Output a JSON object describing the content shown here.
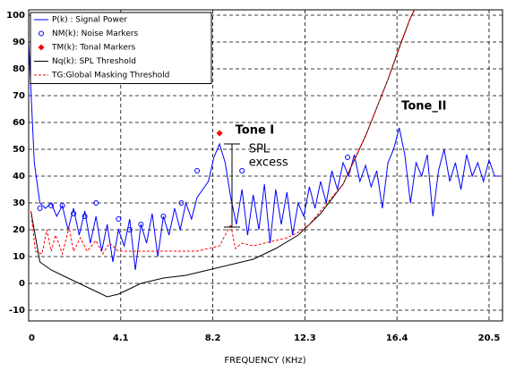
{
  "chart_data": {
    "type": "line",
    "xlabel": "FREQUENCY (KHz)",
    "xlim": [
      0,
      21.1
    ],
    "ylim": [
      -14,
      102
    ],
    "xticks": [
      0,
      4.1,
      8.2,
      12.3,
      16.4,
      20.5
    ],
    "yticks": [
      -10,
      0,
      10,
      20,
      30,
      40,
      50,
      60,
      70,
      80,
      90,
      100
    ],
    "grid": true,
    "legend": "upper left",
    "series": [
      {
        "name": "P(k) : Signal Power",
        "color": "#0000ff",
        "style": "line",
        "x": [
          0,
          0.25,
          0.5,
          0.75,
          1,
          1.25,
          1.5,
          1.75,
          2,
          2.25,
          2.5,
          2.75,
          3,
          3.25,
          3.5,
          3.75,
          4,
          4.25,
          4.5,
          4.75,
          5,
          5.25,
          5.5,
          5.75,
          6,
          6.25,
          6.5,
          6.75,
          7,
          7.25,
          7.5,
          7.75,
          8,
          8.25,
          8.5,
          8.75,
          9,
          9.25,
          9.5,
          9.75,
          10,
          10.25,
          10.5,
          10.75,
          11,
          11.25,
          11.5,
          11.75,
          12,
          12.25,
          12.5,
          12.75,
          13,
          13.25,
          13.5,
          13.75,
          14,
          14.25,
          14.5,
          14.75,
          15,
          15.25,
          15.5,
          15.75,
          16,
          16.25,
          16.5,
          16.75,
          17,
          17.25,
          17.5,
          17.75,
          18,
          18.25,
          18.5,
          18.75,
          19,
          19.25,
          19.5,
          19.75,
          20,
          20.25,
          20.5,
          20.75,
          21
        ],
        "values": [
          90,
          45,
          30,
          28,
          30,
          25,
          29,
          20,
          28,
          18,
          27,
          15,
          25,
          12,
          22,
          8,
          20,
          14,
          24,
          5,
          22,
          15,
          26,
          10,
          25,
          18,
          28,
          20,
          30,
          24,
          32,
          35,
          38,
          47,
          52,
          45,
          32,
          22,
          35,
          18,
          33,
          20,
          37,
          15,
          35,
          22,
          34,
          18,
          30,
          25,
          36,
          28,
          38,
          30,
          42,
          35,
          45,
          40,
          48,
          38,
          44,
          36,
          42,
          28,
          45,
          50,
          58,
          48,
          30,
          45,
          40,
          48,
          25,
          42,
          50,
          38,
          45,
          35,
          48,
          40,
          45,
          38,
          46,
          40,
          40
        ]
      },
      {
        "name": "NM(k): Noise Markers",
        "color": "#0000ff",
        "style": "circle",
        "x": [
          0.5,
          1,
          1.5,
          2,
          2.5,
          3,
          4,
          4.5,
          5,
          6,
          6.8,
          7.5,
          9.5,
          14.2
        ],
        "values": [
          28,
          29,
          29,
          26,
          25,
          30,
          24,
          20,
          22,
          25,
          30,
          42,
          42,
          47
        ]
      },
      {
        "name": "TM(k): Tonal Markers",
        "color": "#ff0000",
        "style": "diamond",
        "x": [
          8.5
        ],
        "values": [
          56
        ]
      },
      {
        "name": "Nq(k): SPL Threshold",
        "color": "#000000",
        "style": "line",
        "x": [
          0.1,
          0.5,
          1,
          1.5,
          2,
          2.5,
          3,
          3.5,
          4,
          5,
          6,
          7,
          8,
          9,
          10,
          11,
          12,
          13,
          14,
          15,
          16,
          16.5,
          17,
          17.3
        ],
        "values": [
          27,
          8,
          5,
          3,
          1,
          -1,
          -3,
          -5,
          -4,
          0,
          2,
          3,
          5,
          7,
          9,
          13,
          18,
          26,
          37,
          55,
          76,
          88,
          99,
          104
        ]
      },
      {
        "name": "TG:Global Masking Threshold",
        "color": "#ff0000",
        "style": "dashed",
        "x": [
          0.1,
          0.3,
          0.6,
          0.8,
          1,
          1.2,
          1.5,
          1.8,
          2,
          2.3,
          2.6,
          3,
          3.3,
          3.6,
          4,
          4.5,
          5,
          5.5,
          6,
          6.5,
          7,
          7.5,
          8,
          8.5,
          9,
          9.2,
          9.5,
          10,
          10.5,
          11,
          11.5,
          12,
          12.5,
          13,
          14,
          15,
          16,
          17,
          17.3
        ],
        "values": [
          27,
          12,
          11,
          20,
          12,
          18,
          11,
          21,
          12,
          17,
          12,
          16,
          11,
          15,
          12,
          12,
          12,
          12,
          12,
          12,
          12,
          12,
          13,
          14,
          22,
          13,
          15,
          14,
          15,
          16,
          17,
          19,
          22,
          27,
          37,
          55,
          76,
          99,
          104
        ]
      }
    ],
    "annotations": [
      {
        "text": "Tone I",
        "x": 9.2,
        "y": 57
      },
      {
        "text": "SPL",
        "x": 9.8,
        "y": 50
      },
      {
        "text": "excess",
        "x": 9.8,
        "y": 45
      },
      {
        "text": "Tone_II",
        "x": 16.6,
        "y": 66
      }
    ]
  }
}
